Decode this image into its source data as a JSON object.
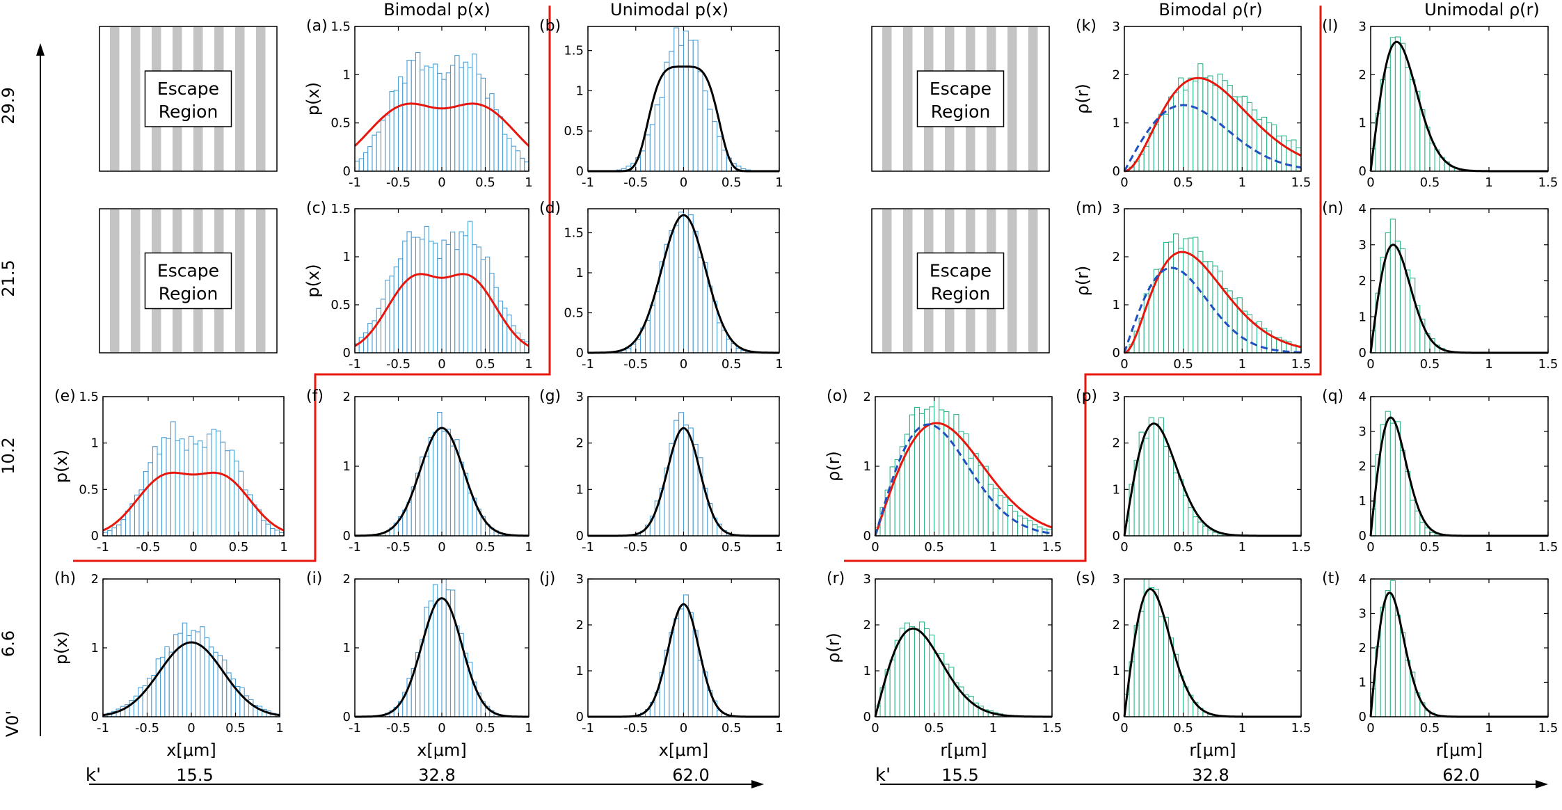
{
  "figure": {
    "left_header_bimodal": "Bimodal p(x)",
    "left_header_unimodal": "Unimodal p(x)",
    "right_header_bimodal": "Bimodal ρ(r)",
    "right_header_unimodal": "Unimodal ρ(r)",
    "v_axis_label": "V0'",
    "v_levels": [
      "29.9",
      "21.5",
      "10.2",
      "6.6"
    ],
    "k_axis_label": "k'",
    "k_levels": [
      "15.5",
      "32.8",
      "62.0"
    ],
    "escape_label_line1": "Escape",
    "escape_label_line2": "Region",
    "x_axis_title": "x[μm]",
    "r_axis_title": "r[μm]",
    "ylabel_px": "p(x)",
    "ylabel_rho": "ρ(r)",
    "colors": {
      "hist_x": "#4a9ed6",
      "hist_r": "#2fb68c",
      "fit_red": "#e8170e",
      "fit_black": "#000000",
      "fit_blue": "#1f4fc0",
      "boundary": "#e8170e",
      "stripe": "#c4c4c4"
    }
  },
  "chart_data": [
    {
      "id": "a",
      "type": "histogram",
      "variable": "x",
      "xlim": [
        -1,
        1
      ],
      "ylim": [
        0,
        1.5
      ],
      "xticks": [
        -1,
        -0.5,
        0,
        0.5,
        1
      ],
      "yticks": [
        0,
        0.5,
        1,
        1.5
      ],
      "hist_shape": "bimodal",
      "hist_peaks": [
        -0.32,
        0.32
      ],
      "hist_max": 1.15,
      "fits": [
        {
          "color": "red",
          "shape": "bimodal",
          "peaks": [
            -0.45,
            0.45
          ],
          "max": 0.7,
          "dip": 0.56
        }
      ]
    },
    {
      "id": "b",
      "type": "histogram",
      "variable": "x",
      "xlim": [
        -1,
        1
      ],
      "ylim": [
        0,
        1.8
      ],
      "xticks": [
        -1,
        -0.5,
        0,
        0.5,
        1
      ],
      "yticks": [
        0,
        0.5,
        1,
        1.5
      ],
      "hist_shape": "gauss",
      "hist_sigma": 0.22,
      "hist_max": 1.75,
      "fits": [
        {
          "color": "black",
          "shape": "flat-top",
          "max": 1.3
        }
      ]
    },
    {
      "id": "c",
      "type": "histogram",
      "variable": "x",
      "xlim": [
        -1,
        1
      ],
      "ylim": [
        0,
        1.5
      ],
      "xticks": [
        -1,
        -0.5,
        0,
        0.5,
        1
      ],
      "yticks": [
        0,
        0.5,
        1,
        1.5
      ],
      "hist_shape": "bimodal",
      "hist_peaks": [
        -0.32,
        0.32
      ],
      "hist_max": 1.25,
      "fits": [
        {
          "color": "red",
          "shape": "bimodal",
          "peaks": [
            -0.33,
            0.33
          ],
          "max": 0.82,
          "dip": 0.68
        }
      ]
    },
    {
      "id": "d",
      "type": "histogram",
      "variable": "x",
      "xlim": [
        -1,
        1
      ],
      "ylim": [
        0,
        1.8
      ],
      "xticks": [
        -1,
        -0.5,
        0,
        0.5,
        1
      ],
      "yticks": [
        0,
        0.5,
        1,
        1.5
      ],
      "hist_shape": "gauss",
      "hist_sigma": 0.22,
      "hist_max": 1.8,
      "fits": [
        {
          "color": "black",
          "shape": "gauss",
          "sigma": 0.23,
          "max": 1.72
        }
      ]
    },
    {
      "id": "e",
      "type": "histogram",
      "variable": "x",
      "xlim": [
        -1,
        1
      ],
      "ylim": [
        0,
        1.5
      ],
      "xticks": [
        -1,
        -0.5,
        0,
        0.5,
        1
      ],
      "yticks": [
        0,
        0.5,
        1,
        1.5
      ],
      "hist_shape": "bimodal",
      "hist_peaks": [
        -0.28,
        0.28
      ],
      "hist_max": 1.1,
      "fits": [
        {
          "color": "red",
          "shape": "bimodal",
          "peaks": [
            -0.33,
            0.33
          ],
          "max": 0.68,
          "dip": 0.62
        }
      ]
    },
    {
      "id": "f",
      "type": "histogram",
      "variable": "x",
      "xlim": [
        -1,
        1
      ],
      "ylim": [
        0,
        2
      ],
      "xticks": [
        -1,
        -0.5,
        0,
        0.5,
        1
      ],
      "yticks": [
        0,
        1,
        2
      ],
      "hist_shape": "gauss",
      "hist_sigma": 0.25,
      "hist_max": 1.6,
      "fits": [
        {
          "color": "black",
          "shape": "gauss",
          "sigma": 0.25,
          "max": 1.55
        }
      ]
    },
    {
      "id": "g",
      "type": "histogram",
      "variable": "x",
      "xlim": [
        -1,
        1
      ],
      "ylim": [
        0,
        3
      ],
      "xticks": [
        -1,
        -0.5,
        0,
        0.5,
        1
      ],
      "yticks": [
        0,
        1,
        2,
        3
      ],
      "hist_shape": "gauss",
      "hist_sigma": 0.17,
      "hist_max": 2.6,
      "fits": [
        {
          "color": "black",
          "shape": "gauss",
          "sigma": 0.17,
          "max": 2.32
        }
      ]
    },
    {
      "id": "h",
      "type": "histogram",
      "variable": "x",
      "xlim": [
        -1,
        1
      ],
      "ylim": [
        0,
        2
      ],
      "xticks": [
        -1,
        -0.5,
        0,
        0.5,
        1
      ],
      "yticks": [
        0,
        1,
        2
      ],
      "hist_shape": "gauss",
      "hist_sigma": 0.37,
      "hist_max": 1.28,
      "fits": [
        {
          "color": "black",
          "shape": "gauss",
          "sigma": 0.36,
          "max": 1.08
        }
      ]
    },
    {
      "id": "i",
      "type": "histogram",
      "variable": "x",
      "xlim": [
        -1,
        1
      ],
      "ylim": [
        0,
        2
      ],
      "xticks": [
        -1,
        -0.5,
        0,
        0.5,
        1
      ],
      "yticks": [
        0,
        1,
        2
      ],
      "hist_shape": "gauss",
      "hist_sigma": 0.23,
      "hist_max": 1.95,
      "fits": [
        {
          "color": "black",
          "shape": "gauss",
          "sigma": 0.23,
          "max": 1.72
        }
      ]
    },
    {
      "id": "j",
      "type": "histogram",
      "variable": "x",
      "xlim": [
        -1,
        1
      ],
      "ylim": [
        0,
        3
      ],
      "xticks": [
        -1,
        -0.5,
        0,
        0.5,
        1
      ],
      "yticks": [
        0,
        1,
        2,
        3
      ],
      "hist_shape": "gauss",
      "hist_sigma": 0.16,
      "hist_max": 2.5,
      "fits": [
        {
          "color": "black",
          "shape": "gauss",
          "sigma": 0.16,
          "max": 2.45
        }
      ]
    },
    {
      "id": "k",
      "type": "histogram",
      "variable": "r",
      "xlim": [
        0,
        1.5
      ],
      "ylim": [
        0,
        3
      ],
      "xticks": [
        0,
        0.5,
        1,
        1.5
      ],
      "yticks": [
        0,
        1,
        2,
        3
      ],
      "hist_shape": "bump",
      "hist_peak": 0.62,
      "hist_width": 0.22,
      "hist_max": 2.0,
      "fits": [
        {
          "color": "red",
          "shape": "bump",
          "peak": 0.58,
          "width": 0.2,
          "max": 1.93
        },
        {
          "color": "blue",
          "dashed": true,
          "shape": "rayleigh",
          "peak": 0.5,
          "max": 1.37
        }
      ]
    },
    {
      "id": "l",
      "type": "histogram",
      "variable": "r",
      "xlim": [
        0,
        1.5
      ],
      "ylim": [
        0,
        3
      ],
      "xticks": [
        0,
        0.5,
        1,
        1.5
      ],
      "yticks": [
        0,
        1,
        2,
        3
      ],
      "hist_shape": "rayleigh",
      "hist_peak": 0.22,
      "hist_max": 2.7,
      "fits": [
        {
          "color": "black",
          "shape": "rayleigh",
          "peak": 0.22,
          "max": 2.68
        }
      ]
    },
    {
      "id": "m",
      "type": "histogram",
      "variable": "r",
      "xlim": [
        0,
        1.5
      ],
      "ylim": [
        0,
        3
      ],
      "xticks": [
        0,
        0.5,
        1,
        1.5
      ],
      "yticks": [
        0,
        1,
        2,
        3
      ],
      "hist_shape": "bump",
      "hist_peak": 0.45,
      "hist_width": 0.2,
      "hist_max": 2.4,
      "fits": [
        {
          "color": "red",
          "shape": "bump",
          "peak": 0.45,
          "width": 0.2,
          "max": 2.1
        },
        {
          "color": "blue",
          "dashed": true,
          "shape": "rayleigh",
          "peak": 0.4,
          "max": 1.77
        }
      ]
    },
    {
      "id": "n",
      "type": "histogram",
      "variable": "r",
      "xlim": [
        0,
        1.5
      ],
      "ylim": [
        0,
        4
      ],
      "xticks": [
        0,
        0.5,
        1,
        1.5
      ],
      "yticks": [
        0,
        1,
        2,
        3,
        4
      ],
      "hist_shape": "rayleigh",
      "hist_peak": 0.19,
      "hist_max": 3.45,
      "fits": [
        {
          "color": "black",
          "shape": "rayleigh",
          "peak": 0.19,
          "max": 3.0
        }
      ]
    },
    {
      "id": "o",
      "type": "histogram",
      "variable": "r",
      "xlim": [
        0,
        1.5
      ],
      "ylim": [
        0,
        2
      ],
      "xticks": [
        0,
        0.5,
        1,
        1.5
      ],
      "yticks": [
        0,
        1,
        2
      ],
      "hist_shape": "rayleigh",
      "hist_peak": 0.48,
      "hist_max": 1.9,
      "fits": [
        {
          "color": "red",
          "shape": "rayleigh",
          "peak": 0.52,
          "max": 1.62
        },
        {
          "color": "blue",
          "dashed": true,
          "shape": "rayleigh",
          "peak": 0.45,
          "max": 1.6
        }
      ]
    },
    {
      "id": "p",
      "type": "histogram",
      "variable": "r",
      "xlim": [
        0,
        1.5
      ],
      "ylim": [
        0,
        3
      ],
      "xticks": [
        0,
        0.5,
        1,
        1.5
      ],
      "yticks": [
        0,
        1,
        2,
        3
      ],
      "hist_shape": "rayleigh",
      "hist_peak": 0.24,
      "hist_max": 2.5,
      "fits": [
        {
          "color": "black",
          "shape": "rayleigh",
          "peak": 0.25,
          "max": 2.42
        }
      ]
    },
    {
      "id": "q",
      "type": "histogram",
      "variable": "r",
      "xlim": [
        0,
        1.5
      ],
      "ylim": [
        0,
        4
      ],
      "xticks": [
        0,
        0.5,
        1,
        1.5
      ],
      "yticks": [
        0,
        1,
        2,
        3,
        4
      ],
      "hist_shape": "rayleigh",
      "hist_peak": 0.16,
      "hist_max": 3.65,
      "fits": [
        {
          "color": "black",
          "shape": "rayleigh",
          "peak": 0.17,
          "max": 3.4
        }
      ]
    },
    {
      "id": "r",
      "type": "histogram",
      "variable": "r",
      "xlim": [
        0,
        1.5
      ],
      "ylim": [
        0,
        3
      ],
      "xticks": [
        0,
        0.5,
        1,
        1.5
      ],
      "yticks": [
        0,
        1,
        2,
        3
      ],
      "hist_shape": "rayleigh",
      "hist_peak": 0.33,
      "hist_max": 2.05,
      "fits": [
        {
          "color": "black",
          "shape": "rayleigh",
          "peak": 0.32,
          "max": 1.92
        }
      ]
    },
    {
      "id": "s",
      "type": "histogram",
      "variable": "r",
      "xlim": [
        0,
        1.5
      ],
      "ylim": [
        0,
        3
      ],
      "xticks": [
        0,
        0.5,
        1,
        1.5
      ],
      "yticks": [
        0,
        1,
        2,
        3
      ],
      "hist_shape": "rayleigh",
      "hist_peak": 0.22,
      "hist_max": 2.85,
      "fits": [
        {
          "color": "black",
          "shape": "rayleigh",
          "peak": 0.22,
          "max": 2.78
        }
      ]
    },
    {
      "id": "t",
      "type": "histogram",
      "variable": "r",
      "xlim": [
        0,
        1.5
      ],
      "ylim": [
        0,
        4
      ],
      "xticks": [
        0,
        0.5,
        1,
        1.5
      ],
      "yticks": [
        0,
        1,
        2,
        3,
        4
      ],
      "hist_shape": "rayleigh",
      "hist_peak": 0.16,
      "hist_max": 3.7,
      "fits": [
        {
          "color": "black",
          "shape": "rayleigh",
          "peak": 0.16,
          "max": 3.6
        }
      ]
    }
  ]
}
